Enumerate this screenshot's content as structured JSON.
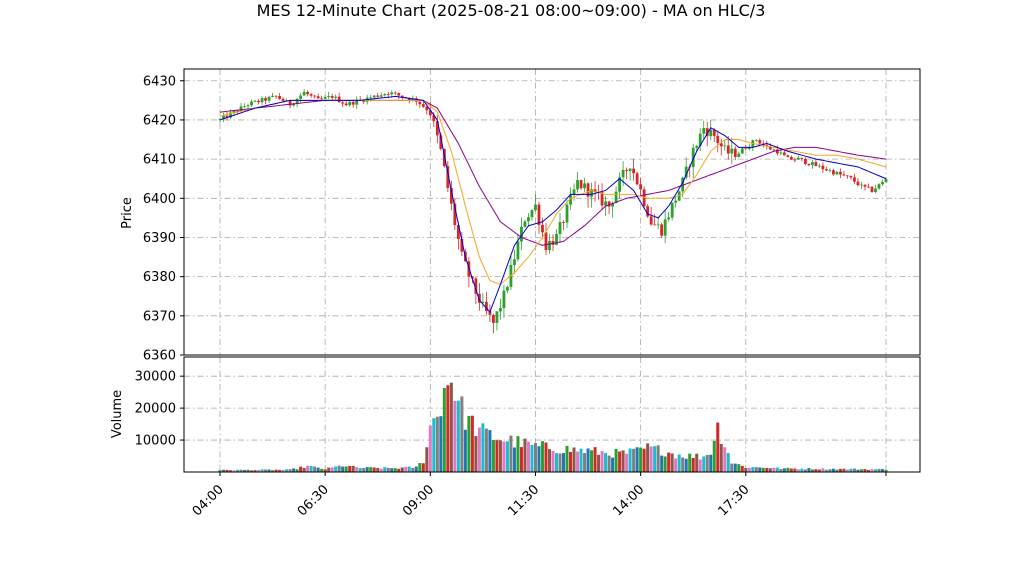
{
  "chart_data": {
    "type": "candlestick",
    "title": "MES 12-Minute Chart (2025-08-21 08:00~09:00) - MA on HLC/3",
    "x_tick_labels": [
      "04:00",
      "06:30",
      "09:00",
      "11:30",
      "14:00",
      "17:30"
    ],
    "price_panel": {
      "ylabel": "Price",
      "ylim": [
        6360,
        6433
      ],
      "y_ticks": [
        6360,
        6370,
        6380,
        6390,
        6400,
        6410,
        6420,
        6430
      ],
      "grid": true
    },
    "volume_panel": {
      "ylabel": "Volume",
      "ylim": [
        0,
        36000
      ],
      "y_ticks": [
        10000,
        20000,
        30000
      ],
      "grid": true
    },
    "price_anchors": [
      [
        0,
        6420
      ],
      [
        4,
        6422
      ],
      [
        8,
        6424
      ],
      [
        12,
        6425
      ],
      [
        16,
        6426
      ],
      [
        20,
        6424
      ],
      [
        24,
        6427
      ],
      [
        28,
        6425
      ],
      [
        32,
        6426
      ],
      [
        36,
        6424
      ],
      [
        40,
        6425
      ],
      [
        44,
        6426
      ],
      [
        48,
        6427
      ],
      [
        52,
        6426
      ],
      [
        56,
        6425
      ],
      [
        60,
        6422
      ],
      [
        63,
        6412
      ],
      [
        66,
        6398
      ],
      [
        69,
        6385
      ],
      [
        72,
        6378
      ],
      [
        75,
        6372
      ],
      [
        78,
        6368
      ],
      [
        81,
        6375
      ],
      [
        84,
        6385
      ],
      [
        87,
        6395
      ],
      [
        90,
        6398
      ],
      [
        93,
        6388
      ],
      [
        96,
        6390
      ],
      [
        99,
        6397
      ],
      [
        102,
        6404
      ],
      [
        105,
        6402
      ],
      [
        108,
        6400
      ],
      [
        111,
        6398
      ],
      [
        114,
        6404
      ],
      [
        117,
        6409
      ],
      [
        120,
        6402
      ],
      [
        123,
        6394
      ],
      [
        126,
        6392
      ],
      [
        129,
        6398
      ],
      [
        132,
        6404
      ],
      [
        135,
        6412
      ],
      [
        138,
        6418
      ],
      [
        141,
        6416
      ],
      [
        144,
        6412
      ],
      [
        147,
        6411
      ],
      [
        150,
        6413
      ],
      [
        153,
        6415
      ],
      [
        156,
        6413
      ],
      [
        159,
        6412
      ],
      [
        162,
        6410
      ],
      [
        165,
        6410
      ],
      [
        168,
        6409
      ],
      [
        171,
        6408
      ],
      [
        174,
        6407
      ],
      [
        177,
        6406
      ],
      [
        180,
        6405
      ],
      [
        183,
        6403
      ],
      [
        186,
        6402
      ],
      [
        189,
        6404
      ],
      [
        190,
        6405
      ]
    ],
    "ma_fast_anchors": [
      [
        0,
        6420
      ],
      [
        10,
        6423
      ],
      [
        20,
        6425
      ],
      [
        30,
        6425
      ],
      [
        40,
        6425
      ],
      [
        50,
        6426
      ],
      [
        58,
        6425
      ],
      [
        62,
        6420
      ],
      [
        66,
        6402
      ],
      [
        70,
        6385
      ],
      [
        74,
        6374
      ],
      [
        77,
        6371
      ],
      [
        80,
        6378
      ],
      [
        84,
        6388
      ],
      [
        88,
        6393
      ],
      [
        92,
        6394
      ],
      [
        96,
        6397
      ],
      [
        100,
        6401
      ],
      [
        106,
        6401
      ],
      [
        110,
        6402
      ],
      [
        114,
        6405
      ],
      [
        118,
        6402
      ],
      [
        122,
        6396
      ],
      [
        125,
        6395
      ],
      [
        128,
        6398
      ],
      [
        132,
        6404
      ],
      [
        136,
        6412
      ],
      [
        140,
        6418
      ],
      [
        144,
        6416
      ],
      [
        148,
        6413
      ],
      [
        152,
        6413
      ],
      [
        156,
        6414
      ],
      [
        162,
        6412
      ],
      [
        170,
        6410
      ],
      [
        176,
        6409
      ],
      [
        182,
        6408
      ],
      [
        190,
        6405
      ]
    ],
    "ma_mid_anchors": [
      [
        0,
        6421
      ],
      [
        10,
        6423
      ],
      [
        20,
        6425
      ],
      [
        30,
        6425
      ],
      [
        40,
        6425
      ],
      [
        50,
        6425
      ],
      [
        58,
        6425
      ],
      [
        62,
        6422
      ],
      [
        66,
        6412
      ],
      [
        70,
        6398
      ],
      [
        74,
        6385
      ],
      [
        77,
        6379
      ],
      [
        80,
        6378
      ],
      [
        84,
        6381
      ],
      [
        88,
        6385
      ],
      [
        92,
        6390
      ],
      [
        96,
        6396
      ],
      [
        100,
        6400
      ],
      [
        106,
        6402
      ],
      [
        110,
        6401
      ],
      [
        114,
        6401
      ],
      [
        118,
        6401
      ],
      [
        122,
        6400
      ],
      [
        128,
        6400
      ],
      [
        132,
        6401
      ],
      [
        136,
        6406
      ],
      [
        140,
        6412
      ],
      [
        144,
        6415
      ],
      [
        148,
        6415
      ],
      [
        152,
        6414
      ],
      [
        158,
        6413
      ],
      [
        164,
        6412
      ],
      [
        170,
        6411
      ],
      [
        176,
        6411
      ],
      [
        182,
        6410
      ],
      [
        190,
        6408
      ]
    ],
    "ma_slow_anchors": [
      [
        0,
        6422
      ],
      [
        10,
        6423
      ],
      [
        20,
        6424
      ],
      [
        30,
        6425
      ],
      [
        40,
        6425
      ],
      [
        50,
        6425
      ],
      [
        58,
        6425
      ],
      [
        62,
        6423
      ],
      [
        68,
        6414
      ],
      [
        74,
        6403
      ],
      [
        80,
        6394
      ],
      [
        86,
        6390
      ],
      [
        92,
        6388
      ],
      [
        98,
        6389
      ],
      [
        104,
        6393
      ],
      [
        110,
        6398
      ],
      [
        116,
        6400
      ],
      [
        122,
        6401
      ],
      [
        128,
        6402
      ],
      [
        134,
        6404
      ],
      [
        140,
        6406
      ],
      [
        146,
        6408
      ],
      [
        152,
        6410
      ],
      [
        158,
        6412
      ],
      [
        164,
        6413
      ],
      [
        170,
        6413
      ],
      [
        176,
        6412
      ],
      [
        182,
        6411
      ],
      [
        190,
        6410
      ]
    ],
    "volume_anchors": [
      [
        0,
        600
      ],
      [
        20,
        700
      ],
      [
        25,
        1800
      ],
      [
        30,
        900
      ],
      [
        35,
        2000
      ],
      [
        40,
        1300
      ],
      [
        50,
        1200
      ],
      [
        56,
        1500
      ],
      [
        58,
        3500
      ],
      [
        60,
        14000
      ],
      [
        62,
        18000
      ],
      [
        64,
        26000
      ],
      [
        66,
        30000
      ],
      [
        68,
        22000
      ],
      [
        70,
        17000
      ],
      [
        74,
        13000
      ],
      [
        78,
        11000
      ],
      [
        82,
        10000
      ],
      [
        86,
        9000
      ],
      [
        90,
        8000
      ],
      [
        96,
        7500
      ],
      [
        100,
        7000
      ],
      [
        106,
        6500
      ],
      [
        110,
        6000
      ],
      [
        114,
        5800
      ],
      [
        118,
        6200
      ],
      [
        122,
        7500
      ],
      [
        126,
        6800
      ],
      [
        130,
        5500
      ],
      [
        134,
        5000
      ],
      [
        138,
        4800
      ],
      [
        140,
        6500
      ],
      [
        142,
        14000
      ],
      [
        144,
        9000
      ],
      [
        146,
        3000
      ],
      [
        150,
        1500
      ],
      [
        156,
        1400
      ],
      [
        160,
        1100
      ],
      [
        170,
        1000
      ],
      [
        180,
        900
      ],
      [
        190,
        800
      ]
    ],
    "candle_count": 191,
    "colors": {
      "up": "#2ca02c",
      "down": "#d62728",
      "ma_fast": "#0000cc",
      "ma_mid": "#f5a623",
      "ma_slow": "#8b008b",
      "volume_palette": [
        "#1f77b4",
        "#2ca02c",
        "#d62728",
        "#8c564b",
        "#e377c2",
        "#17becf",
        "#7f7f7f"
      ]
    }
  }
}
